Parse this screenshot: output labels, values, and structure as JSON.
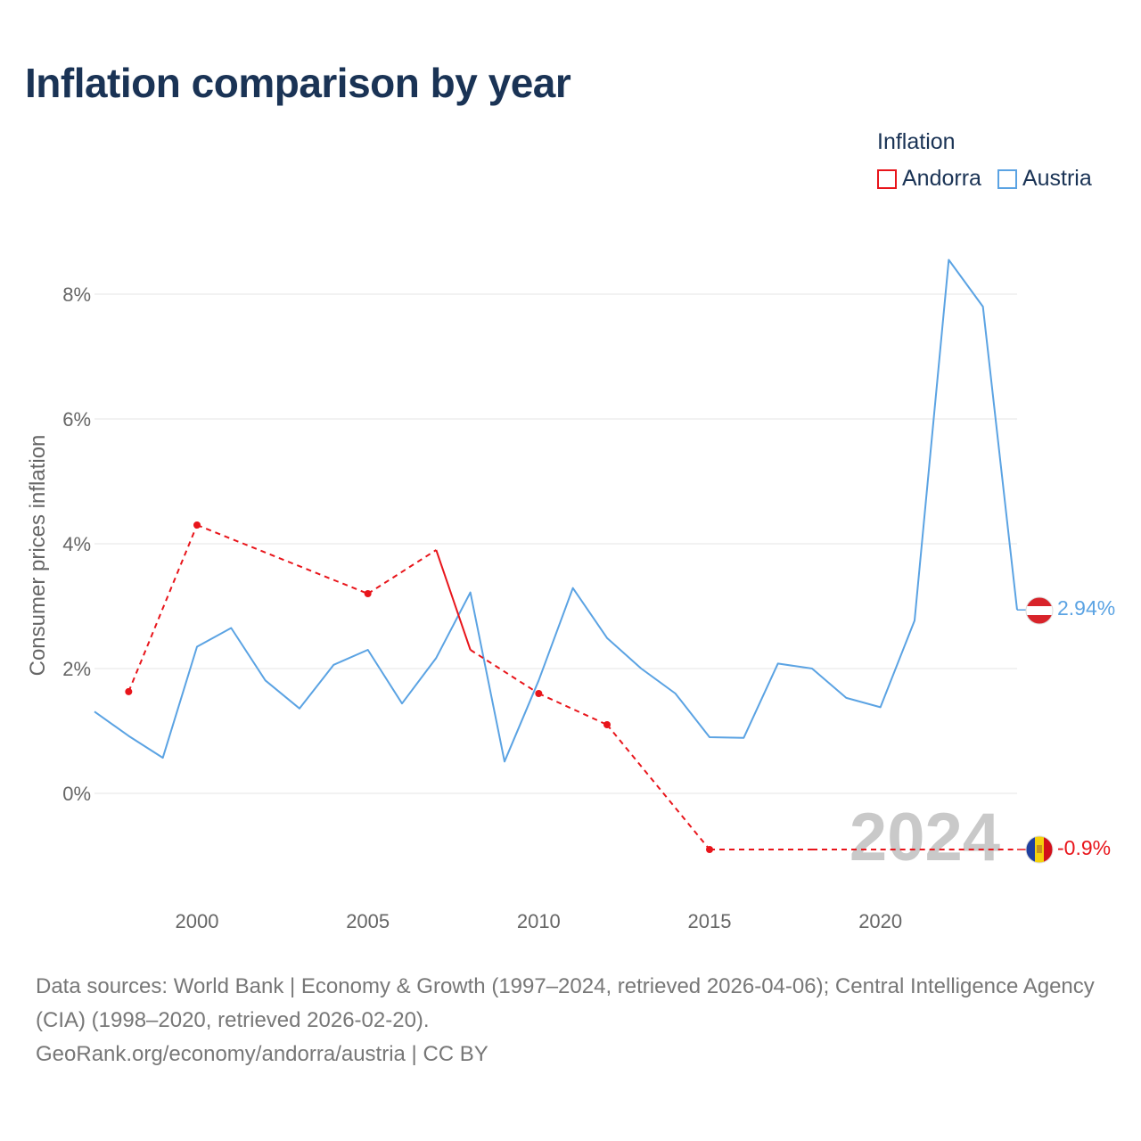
{
  "title": "Inflation comparison by year",
  "legend": {
    "title": "Inflation",
    "items": [
      {
        "label": "Andorra",
        "color": "#e8151b"
      },
      {
        "label": "Austria",
        "color": "#5ba3e3"
      }
    ]
  },
  "chart_data": {
    "type": "line",
    "title": "Inflation comparison by year",
    "xlabel": "",
    "ylabel": "Consumer prices inflation",
    "xlim": [
      1997,
      2024
    ],
    "ylim": [
      -1.5,
      8.8
    ],
    "x_ticks": [
      2000,
      2005,
      2010,
      2015,
      2020
    ],
    "y_ticks": [
      0,
      2,
      4,
      6,
      8
    ],
    "y_tick_labels": [
      "0%",
      "2%",
      "4%",
      "6%",
      "8%"
    ],
    "grid": true,
    "year_watermark": "2024",
    "series": [
      {
        "name": "Andorra",
        "color": "#e8151b",
        "x": [
          1998,
          2000,
          2005,
          2007,
          2008,
          2010,
          2012,
          2015,
          2018,
          2020,
          2024
        ],
        "values": [
          1.63,
          4.3,
          3.2,
          3.9,
          2.3,
          1.6,
          1.1,
          -0.9,
          -0.9,
          -0.9,
          -0.9
        ],
        "end_label": "-0.9%"
      },
      {
        "name": "Austria",
        "color": "#5ba3e3",
        "x": [
          1997,
          1998,
          1999,
          2000,
          2001,
          2002,
          2003,
          2004,
          2005,
          2006,
          2007,
          2008,
          2009,
          2010,
          2011,
          2012,
          2013,
          2014,
          2015,
          2016,
          2017,
          2018,
          2019,
          2020,
          2021,
          2022,
          2023,
          2024
        ],
        "values": [
          1.31,
          0.92,
          0.57,
          2.35,
          2.65,
          1.81,
          1.36,
          2.06,
          2.3,
          1.44,
          2.17,
          3.22,
          0.51,
          1.81,
          3.29,
          2.49,
          2.0,
          1.6,
          0.9,
          0.89,
          2.08,
          2.0,
          1.53,
          1.38,
          2.77,
          8.55,
          7.8,
          2.94
        ],
        "end_label": "2.94%"
      }
    ]
  },
  "footer": {
    "sources": "Data sources: World Bank | Economy & Growth (1997–2024, retrieved 2026-04-06); Central Intelligence Agency (CIA) (1998–2020, retrieved 2026-02-20).",
    "credit": "GeoRank.org/economy/andorra/austria | CC BY"
  }
}
